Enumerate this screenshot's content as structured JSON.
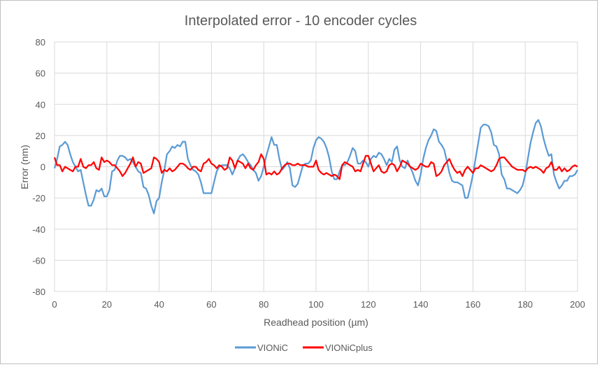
{
  "chart_data": {
    "type": "line",
    "title": "Interpolated error - 10 encoder cycles",
    "xlabel": "Readhead position (µm)",
    "ylabel": "Error (nm)",
    "xlim": [
      0,
      200
    ],
    "ylim": [
      -80,
      80
    ],
    "xticks": [
      0,
      20,
      40,
      60,
      80,
      100,
      120,
      140,
      160,
      180,
      200
    ],
    "yticks": [
      80,
      60,
      40,
      20,
      0,
      -20,
      -40,
      -60,
      -80
    ],
    "grid": true,
    "legend_position": "bottom",
    "series": [
      {
        "name": "VIONiC",
        "color": "#5b9bd5",
        "x": [
          0,
          1,
          2,
          3,
          4,
          5,
          6,
          7,
          8,
          9,
          10,
          11,
          12,
          13,
          14,
          15,
          16,
          17,
          18,
          19,
          20,
          21,
          22,
          23,
          24,
          25,
          26,
          27,
          28,
          29,
          30,
          31,
          32,
          33,
          34,
          35,
          36,
          37,
          38,
          39,
          40,
          41,
          42,
          43,
          44,
          45,
          46,
          47,
          48,
          49,
          50,
          51,
          52,
          53,
          54,
          55,
          56,
          57,
          58,
          59,
          60,
          61,
          62,
          63,
          64,
          65,
          66,
          67,
          68,
          69,
          70,
          71,
          72,
          73,
          74,
          75,
          76,
          77,
          78,
          79,
          80,
          81,
          82,
          83,
          84,
          85,
          86,
          87,
          88,
          89,
          90,
          91,
          92,
          93,
          94,
          95,
          96,
          97,
          98,
          99,
          100,
          101,
          102,
          103,
          104,
          105,
          106,
          107,
          108,
          109,
          110,
          111,
          112,
          113,
          114,
          115,
          116,
          117,
          118,
          119,
          120,
          121,
          122,
          123,
          124,
          125,
          126,
          127,
          128,
          129,
          130,
          131,
          132,
          133,
          134,
          135,
          136,
          137,
          138,
          139,
          140,
          141,
          142,
          143,
          144,
          145,
          146,
          147,
          148,
          149,
          150,
          151,
          152,
          153,
          154,
          155,
          156,
          157,
          158,
          159,
          160,
          161,
          162,
          163,
          164,
          165,
          166,
          167,
          168,
          169,
          170,
          171,
          172,
          173,
          174,
          175,
          176,
          177,
          178,
          179,
          180,
          181,
          182,
          183,
          184,
          185,
          186,
          187,
          188,
          189,
          190,
          191,
          192,
          193,
          194,
          195,
          196,
          197,
          198,
          199,
          200
        ],
        "values": [
          -1,
          5,
          13,
          14,
          16,
          14,
          8,
          3,
          0,
          -3,
          -2,
          -10,
          -18,
          -25,
          -25,
          -21,
          -15,
          -16,
          -14,
          -19,
          -19,
          -15,
          -3,
          -2,
          4,
          7,
          7,
          6,
          4,
          5,
          3,
          0,
          -3,
          -4,
          -13,
          -14,
          -18,
          -25,
          -30,
          -22,
          -20,
          -10,
          -2,
          8,
          10,
          13,
          12,
          14,
          13,
          16,
          16,
          5,
          1,
          -2,
          -3,
          -5,
          -10,
          -17,
          -17,
          -17,
          -17,
          -10,
          -3,
          0,
          1,
          1,
          1,
          -1,
          -5,
          -1,
          4,
          7,
          8,
          6,
          3,
          1,
          -2,
          -4,
          -9,
          -6,
          0,
          7,
          13,
          19,
          14,
          14,
          5,
          -2,
          0,
          3,
          -1,
          -12,
          -13,
          -11,
          -5,
          1,
          2,
          2,
          4,
          12,
          17,
          19,
          18,
          16,
          12,
          6,
          -3,
          -8,
          -8,
          -3,
          1,
          1,
          3,
          7,
          12,
          10,
          2,
          2,
          4,
          3,
          0,
          5,
          7,
          6,
          9,
          8,
          5,
          1,
          5,
          3,
          11,
          13,
          4,
          0,
          -1,
          4,
          0,
          -4,
          -9,
          -12,
          -5,
          5,
          12,
          17,
          20,
          24,
          23,
          16,
          14,
          11,
          4,
          -4,
          -9,
          -10,
          -10,
          -11,
          -12,
          -20,
          -20,
          -13,
          -5,
          5,
          15,
          25,
          27,
          27,
          26,
          22,
          14,
          13,
          8,
          -5,
          -8,
          -14,
          -14,
          -15,
          -16,
          -17,
          -15,
          -12,
          -5,
          5,
          15,
          22,
          28,
          30,
          26,
          18,
          12,
          7,
          8,
          -5,
          -10,
          -14,
          -12,
          -9,
          -9,
          -6,
          -6,
          -5,
          -2
        ]
      },
      {
        "name": "VIONiCplus",
        "color": "#ff0000",
        "x": [
          0,
          1,
          2,
          3,
          4,
          5,
          6,
          7,
          8,
          9,
          10,
          11,
          12,
          13,
          14,
          15,
          16,
          17,
          18,
          19,
          20,
          21,
          22,
          23,
          24,
          25,
          26,
          27,
          28,
          29,
          30,
          31,
          32,
          33,
          34,
          35,
          36,
          37,
          38,
          39,
          40,
          41,
          42,
          43,
          44,
          45,
          46,
          47,
          48,
          49,
          50,
          51,
          52,
          53,
          54,
          55,
          56,
          57,
          58,
          59,
          60,
          61,
          62,
          63,
          64,
          65,
          66,
          67,
          68,
          69,
          70,
          71,
          72,
          73,
          74,
          75,
          76,
          77,
          78,
          79,
          80,
          81,
          82,
          83,
          84,
          85,
          86,
          87,
          88,
          89,
          90,
          91,
          92,
          93,
          94,
          95,
          96,
          97,
          98,
          99,
          100,
          101,
          102,
          103,
          104,
          105,
          106,
          107,
          108,
          109,
          110,
          111,
          112,
          113,
          114,
          115,
          116,
          117,
          118,
          119,
          120,
          121,
          122,
          123,
          124,
          125,
          126,
          127,
          128,
          129,
          130,
          131,
          132,
          133,
          134,
          135,
          136,
          137,
          138,
          139,
          140,
          141,
          142,
          143,
          144,
          145,
          146,
          147,
          148,
          149,
          150,
          151,
          152,
          153,
          154,
          155,
          156,
          157,
          158,
          159,
          160,
          161,
          162,
          163,
          164,
          165,
          166,
          167,
          168,
          169,
          170,
          171,
          172,
          173,
          174,
          175,
          176,
          177,
          178,
          179,
          180,
          181,
          182,
          183,
          184,
          185,
          186,
          187,
          188,
          189,
          190,
          191,
          192,
          193,
          194,
          195,
          196,
          197,
          198,
          199,
          200
        ],
        "values": [
          6,
          1,
          1,
          -3,
          0,
          -1,
          -2,
          -3,
          0,
          0,
          5,
          0,
          -1,
          1,
          1,
          3,
          -1,
          -2,
          6,
          3,
          4,
          3,
          1,
          1,
          -1,
          -3,
          -6,
          -4,
          -1,
          2,
          6,
          0,
          3,
          2,
          -4,
          -3,
          -2,
          -1,
          6,
          5,
          3,
          -4,
          -2,
          -3,
          -1,
          -3,
          -2,
          0,
          2,
          2,
          1,
          -1,
          -2,
          0,
          0,
          -2,
          -3,
          2,
          3,
          5,
          2,
          1,
          -1,
          1,
          0,
          -2,
          -1,
          6,
          4,
          -1,
          4,
          3,
          2,
          -1,
          2,
          -1,
          -2,
          1,
          3,
          8,
          5,
          -5,
          -4,
          -5,
          -3,
          -5,
          -4,
          -1,
          1,
          2,
          2,
          1,
          1,
          2,
          1,
          1,
          1,
          0,
          0,
          0,
          4,
          -2,
          -4,
          -5,
          -4,
          -5,
          -6,
          -5,
          -6,
          -8,
          1,
          3,
          2,
          1,
          0,
          -3,
          -2,
          -3,
          2,
          7,
          7,
          2,
          -3,
          -1,
          1,
          -3,
          -4,
          -3,
          1,
          2,
          1,
          -3,
          0,
          4,
          3,
          2,
          0,
          -1,
          -2,
          -1,
          2,
          1,
          0,
          0,
          3,
          2,
          -6,
          -5,
          -3,
          1,
          3,
          5,
          1,
          -2,
          -4,
          -3,
          -6,
          -2,
          0,
          -2,
          -4,
          -1,
          -1,
          1,
          0,
          -1,
          -2,
          -3,
          -2,
          1,
          5,
          6,
          6,
          4,
          2,
          0,
          -1,
          -2,
          -2,
          -2,
          -3,
          -1,
          0,
          -1,
          0,
          -1,
          -2,
          -4,
          -1,
          0,
          3,
          -2,
          -2,
          0,
          -3,
          -1,
          -3,
          -2,
          0,
          1,
          0
        ]
      }
    ]
  }
}
